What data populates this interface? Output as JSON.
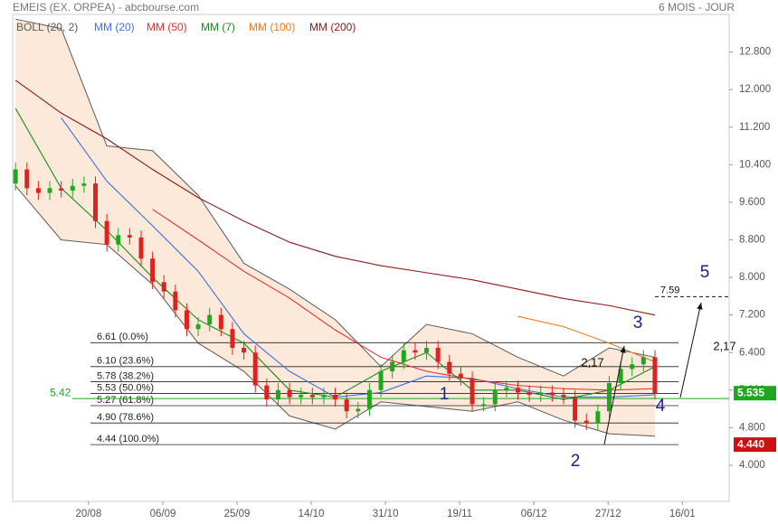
{
  "chart_data": {
    "type": "candlestick",
    "title": "EMEIS (EX. ORPEA) - abcbourse.com",
    "period": "6 MOIS - JOUR",
    "up_color": "#1fa81f",
    "down_color": "#dd2222",
    "x": [
      0,
      2,
      4,
      6,
      8,
      10,
      12,
      14,
      16,
      18,
      20,
      22,
      24,
      26,
      28,
      30,
      32,
      34,
      36,
      38,
      40,
      42,
      44,
      46,
      48,
      50,
      52,
      54,
      56,
      58,
      60,
      62,
      64,
      66,
      68,
      70,
      72,
      74,
      76,
      78,
      80,
      82,
      84,
      86,
      88,
      90,
      92,
      94,
      96,
      98,
      100,
      102,
      104,
      106,
      108,
      110,
      112
    ],
    "open": [
      10.0,
      10.3,
      9.9,
      9.8,
      9.9,
      9.85,
      9.95,
      10.0,
      9.2,
      8.7,
      8.9,
      8.85,
      8.4,
      7.9,
      7.7,
      7.3,
      6.9,
      7.0,
      7.2,
      6.9,
      6.5,
      6.4,
      5.7,
      5.4,
      5.6,
      5.45,
      5.5,
      5.45,
      5.5,
      5.4,
      5.15,
      5.2,
      5.6,
      6.0,
      6.2,
      6.45,
      6.4,
      6.5,
      6.2,
      5.95,
      5.85,
      5.3,
      5.3,
      5.6,
      5.65,
      5.55,
      5.5,
      5.55,
      5.5,
      5.45,
      4.95,
      4.9,
      5.15,
      5.75,
      6.05,
      6.15,
      6.3
    ],
    "high": [
      10.45,
      10.45,
      10.05,
      10.05,
      10.05,
      10.1,
      10.15,
      10.15,
      9.35,
      9.05,
      9.05,
      9.0,
      8.55,
      8.05,
      7.85,
      7.45,
      7.15,
      7.35,
      7.35,
      7.05,
      6.65,
      6.55,
      5.85,
      5.75,
      5.75,
      5.65,
      5.65,
      5.65,
      5.65,
      5.55,
      5.35,
      5.75,
      6.15,
      6.35,
      6.6,
      6.6,
      6.65,
      6.65,
      6.35,
      6.1,
      6.0,
      5.45,
      5.75,
      5.8,
      5.8,
      5.7,
      5.7,
      5.7,
      5.65,
      5.6,
      5.1,
      5.3,
      5.9,
      6.2,
      6.3,
      6.45,
      6.45
    ],
    "low": [
      9.85,
      9.75,
      9.65,
      9.65,
      9.7,
      9.7,
      9.8,
      9.05,
      8.55,
      8.55,
      8.7,
      8.25,
      7.75,
      7.55,
      7.15,
      6.75,
      6.75,
      6.85,
      6.75,
      6.35,
      6.25,
      5.55,
      5.25,
      5.25,
      5.3,
      5.3,
      5.3,
      5.3,
      5.25,
      5.0,
      5.0,
      5.05,
      5.45,
      5.85,
      6.05,
      6.25,
      6.25,
      6.05,
      5.8,
      5.7,
      5.15,
      5.15,
      5.15,
      5.45,
      5.4,
      5.35,
      5.35,
      5.35,
      5.3,
      4.8,
      4.75,
      4.75,
      5.0,
      5.6,
      5.9,
      6.0,
      5.4
    ],
    "close": [
      10.3,
      9.9,
      9.8,
      9.9,
      9.85,
      9.95,
      10.0,
      9.2,
      8.7,
      8.9,
      8.85,
      8.4,
      7.9,
      7.7,
      7.3,
      6.9,
      7.0,
      7.2,
      6.9,
      6.5,
      6.4,
      5.7,
      5.4,
      5.6,
      5.45,
      5.5,
      5.45,
      5.5,
      5.4,
      5.15,
      5.2,
      5.6,
      6.0,
      6.2,
      6.45,
      6.4,
      6.5,
      6.2,
      5.95,
      5.85,
      5.3,
      5.3,
      5.6,
      5.65,
      5.55,
      5.5,
      5.55,
      5.5,
      5.45,
      4.95,
      4.9,
      5.15,
      5.75,
      6.05,
      6.15,
      6.3,
      5.535
    ],
    "xlim": [
      -0.5,
      125
    ],
    "xticks": [
      {
        "value": 12.8,
        "label": "20/08"
      },
      {
        "value": 25.8,
        "label": "06/09"
      },
      {
        "value": 38.8,
        "label": "25/09"
      },
      {
        "value": 51.8,
        "label": "14/10"
      },
      {
        "value": 64.8,
        "label": "31/10"
      },
      {
        "value": 77.8,
        "label": "19/11"
      },
      {
        "value": 90.8,
        "label": "06/12"
      },
      {
        "value": 103.8,
        "label": "27/12"
      },
      {
        "value": 116.8,
        "label": "16/01"
      }
    ],
    "ylim": [
      3.23,
      13.6
    ],
    "yticks": [
      {
        "value": 4.0,
        "label": "4.000"
      },
      {
        "value": 4.8,
        "label": "4.800"
      },
      {
        "value": 5.6,
        "label": "5.600"
      },
      {
        "value": 6.4,
        "label": "6.400"
      },
      {
        "value": 7.2,
        "label": "7.200"
      },
      {
        "value": 8.0,
        "label": "8.000"
      },
      {
        "value": 8.8,
        "label": "8.800"
      },
      {
        "value": 9.6,
        "label": "9.600"
      },
      {
        "value": 10.4,
        "label": "10.400"
      },
      {
        "value": 11.2,
        "label": "11.200"
      },
      {
        "value": 12.0,
        "label": "12.000"
      },
      {
        "value": 12.8,
        "label": "12.800"
      }
    ],
    "bollinger": {
      "name": "BOLL (20, 2)",
      "color": "#5a5a5a",
      "fill": "#fde3cf",
      "x": [
        0,
        8,
        16,
        24,
        32,
        40,
        48,
        56,
        64,
        72,
        80,
        88,
        96,
        104,
        112
      ],
      "upper": [
        13.5,
        13.3,
        10.8,
        10.7,
        9.75,
        8.3,
        7.75,
        7.1,
        6.1,
        7.0,
        6.8,
        6.3,
        5.9,
        6.5,
        6.3
      ],
      "lower": [
        9.95,
        8.8,
        8.7,
        7.85,
        6.6,
        6.0,
        5.05,
        4.77,
        5.35,
        5.25,
        5.15,
        5.35,
        4.96,
        4.67,
        4.62
      ]
    },
    "series": [
      {
        "name": "MM (20)",
        "color": "#3d6fe0",
        "x": [
          0,
          8,
          16,
          24,
          32,
          40,
          48,
          56,
          64,
          72,
          80,
          88,
          96,
          104,
          112
        ],
        "values": [
          null,
          11.4,
          10.05,
          9.1,
          8.13,
          6.8,
          6.0,
          5.45,
          5.55,
          5.9,
          5.85,
          5.63,
          5.45,
          5.45,
          5.5
        ]
      },
      {
        "name": "MM (50)",
        "color": "#e03030",
        "x": [
          0,
          8,
          16,
          24,
          32,
          40,
          48,
          56,
          64,
          72,
          80,
          88,
          96,
          104,
          112
        ],
        "values": [
          null,
          null,
          null,
          9.45,
          8.8,
          8.13,
          7.56,
          6.88,
          6.3,
          6.0,
          5.83,
          5.7,
          5.63,
          5.6,
          5.63
        ]
      },
      {
        "name": "MM (7)",
        "color": "#1a8a1a",
        "x": [
          0,
          8,
          16,
          24,
          32,
          40,
          48,
          56,
          64,
          72,
          80,
          88,
          96,
          104,
          112
        ],
        "values": [
          11.6,
          9.9,
          9.0,
          8.0,
          7.1,
          6.6,
          5.6,
          5.45,
          6.0,
          6.4,
          5.6,
          5.6,
          5.4,
          5.6,
          6.1
        ]
      },
      {
        "name": "MM (100)",
        "color": "#f07820",
        "x": [
          0,
          8,
          16,
          24,
          32,
          40,
          48,
          56,
          64,
          72,
          80,
          88,
          96,
          104,
          112
        ],
        "values": [
          null,
          null,
          null,
          null,
          null,
          null,
          null,
          null,
          null,
          null,
          null,
          7.17,
          6.95,
          6.6,
          6.2
        ]
      },
      {
        "name": "MM (200)",
        "color": "#8b1a1a",
        "x": [
          0,
          8,
          16,
          24,
          32,
          40,
          48,
          56,
          64,
          72,
          80,
          88,
          96,
          104,
          112
        ],
        "values": [
          12.2,
          11.5,
          10.95,
          10.3,
          9.7,
          9.2,
          8.75,
          8.45,
          8.25,
          8.1,
          7.95,
          7.75,
          7.55,
          7.4,
          7.2
        ]
      }
    ],
    "fib_levels": [
      {
        "value": 6.61,
        "label": "6.61 (0.0%)"
      },
      {
        "value": 6.1,
        "label": "6.10 (23.6%)"
      },
      {
        "value": 5.78,
        "label": "5.78 (38.2%)"
      },
      {
        "value": 5.53,
        "label": "5.53 (50.0%)"
      },
      {
        "value": 5.27,
        "label": "5.27 (61.8%)"
      },
      {
        "value": 4.9,
        "label": "4.90 (78.6%)"
      },
      {
        "value": 4.44,
        "label": "4.44 (100.0%)"
      }
    ],
    "support": {
      "value": 5.42,
      "label": "5.42",
      "color": "#1fa81f"
    },
    "last_price": 5.535,
    "low_price": {
      "value": 4.44,
      "label": "4.440"
    },
    "target": 7.59,
    "waves": [
      "1",
      "2",
      "3",
      "4",
      "5"
    ],
    "notes": [
      "2,17",
      "2,17"
    ]
  }
}
